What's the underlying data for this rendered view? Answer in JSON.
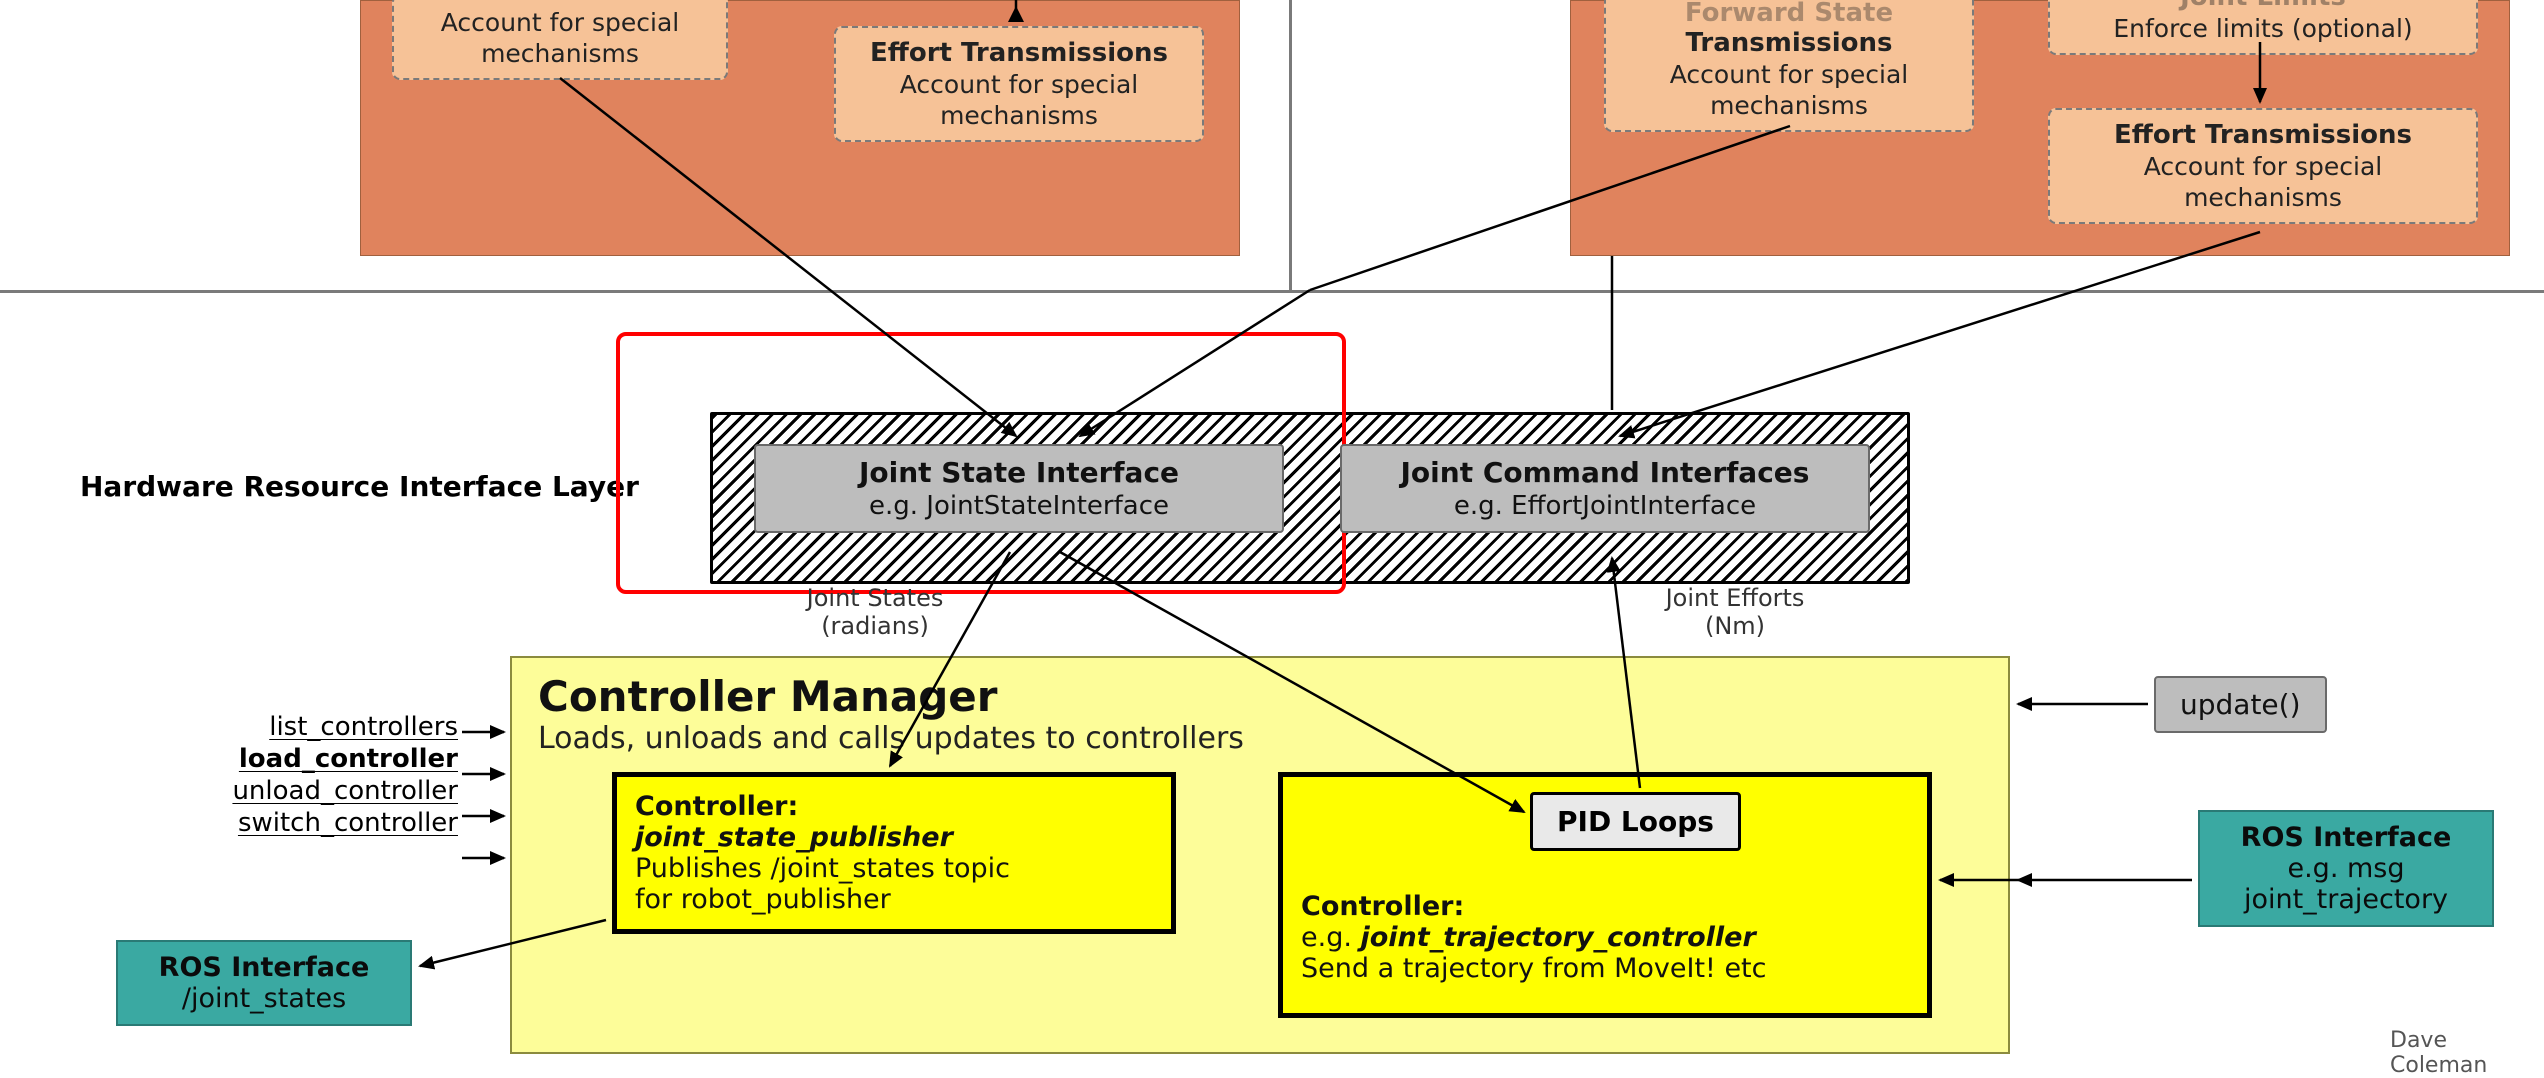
{
  "colors": {
    "orange_panel": "#e0835d",
    "orange_box_fill": "#f6c297",
    "orange_box_border": "#7a7a7a",
    "grey_box_fill": "#bdbdbd",
    "grey_box_border": "#6a6a6a",
    "hatched_stroke": "#000000",
    "red_highlight": "#ff0000",
    "cm_fill": "#fdfd99",
    "cm_border": "#8b8b3e",
    "ctrl_fill": "#ffff00",
    "ctrl_border": "#000000",
    "pid_fill": "#e9e9e9",
    "ros_fill": "#3aa9a2",
    "ros_border": "#2a7a75",
    "arrow": "#000000",
    "background": "#ffffff"
  },
  "top_left": {
    "box1": {
      "title": "",
      "sub1": "Account for special",
      "sub2": "mechanisms"
    },
    "box2": {
      "title": "Effort Transmissions",
      "sub1": "Account for special",
      "sub2": "mechanisms"
    }
  },
  "top_right": {
    "box1": {
      "title_partial1": "Forward State",
      "title": "Transmissions",
      "sub1": "Account for special",
      "sub2": "mechanisms"
    },
    "box2": {
      "title_partial": "Joint Limits",
      "sub": "Enforce limits (optional)"
    },
    "box3": {
      "title": "Effort Transmissions",
      "sub1": "Account for special",
      "sub2": "mechanisms"
    }
  },
  "hw_layer_label": "Hardware Resource Interface Layer",
  "interfaces": {
    "state": {
      "title": "Joint State Interface",
      "sub": "e.g. JointStateInterface",
      "below1": "Joint States",
      "below2": "(radians)"
    },
    "command": {
      "title": "Joint Command Interfaces",
      "sub": "e.g. EffortJointInterface",
      "below1": "Joint Efforts",
      "below2": "(Nm)"
    }
  },
  "controller_manager": {
    "title": "Controller Manager",
    "subtitle": "Loads, unloads and calls updates to controllers"
  },
  "ctrl_left": {
    "header": "Controller:",
    "name": "joint_state_publisher",
    "line1": "Publishes /joint_states topic",
    "line2": "for robot_publisher"
  },
  "ctrl_right": {
    "header": "Controller:",
    "prefix": "e.g. ",
    "name": "joint_trajectory_controller",
    "line1": "Send a trajectory from MoveIt! etc"
  },
  "pid_label": "PID Loops",
  "update_label": "update()",
  "api": {
    "items": [
      "list_controllers",
      "load_controller",
      "unload_controller",
      "switch_controller"
    ],
    "bold_index": 1
  },
  "ros_left": {
    "header": "ROS Interface",
    "line": "/joint_states"
  },
  "ros_right": {
    "header": "ROS Interface",
    "line1": "e.g. msg",
    "line2": "joint_trajectory"
  },
  "credit": "Dave Coleman"
}
